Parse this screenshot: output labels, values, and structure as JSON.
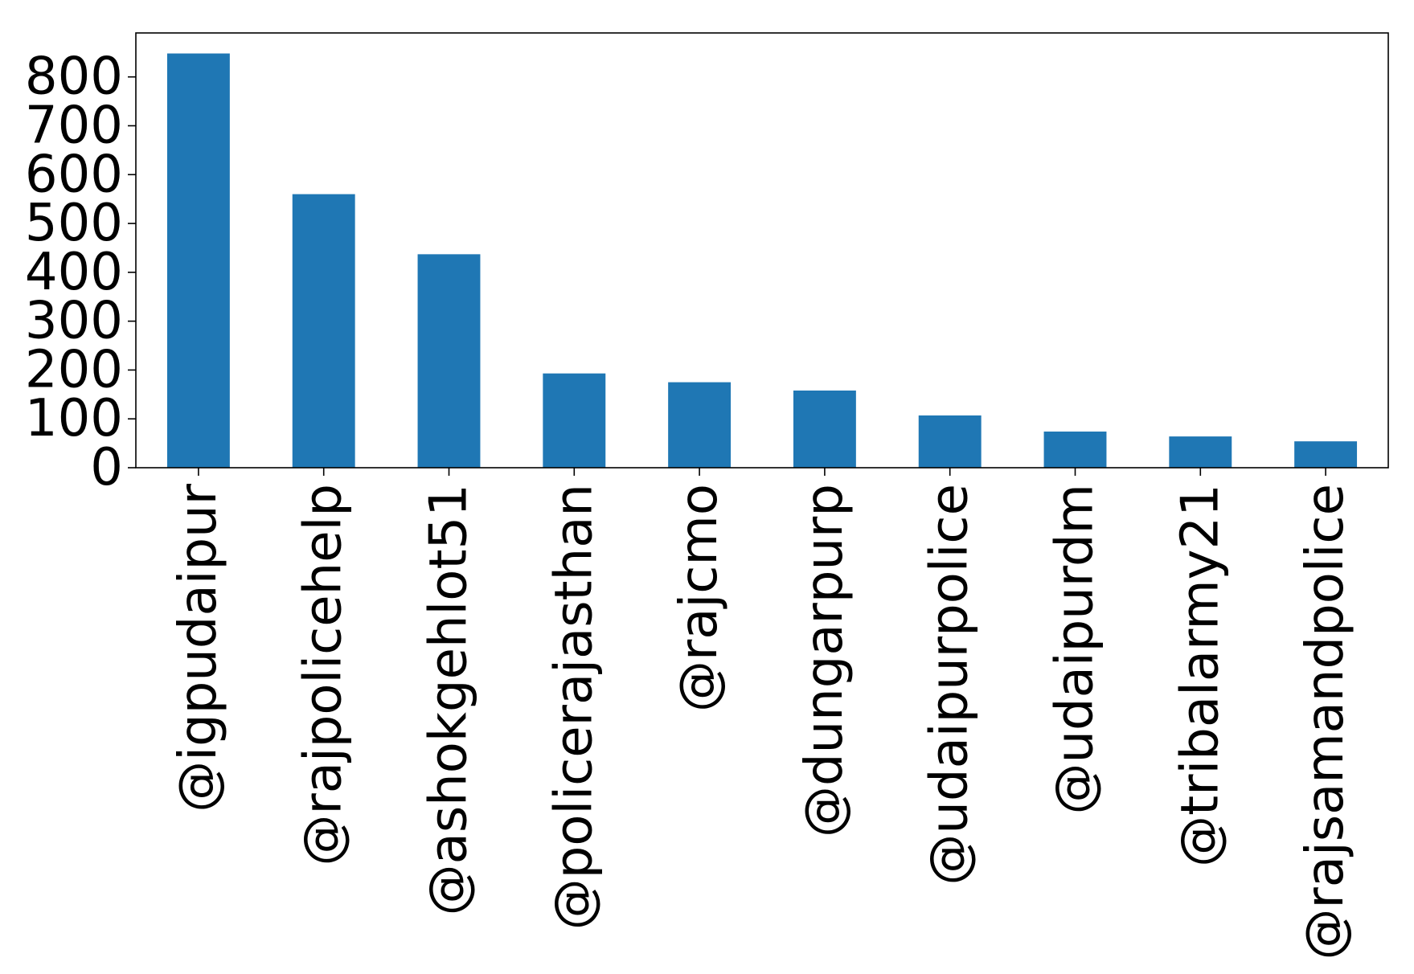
{
  "chart_data": {
    "type": "bar",
    "title": "",
    "xlabel": "",
    "ylabel": "",
    "categories": [
      "@igpudaipur",
      "@rajpolicehelp",
      "@ashokgehlot51",
      "@policerajasthan",
      "@rajcmo",
      "@dungarpurp",
      "@udaipurpolice",
      "@udaipurdm",
      "@tribalarmy21",
      "@rajsamandpolice"
    ],
    "values": [
      848,
      560,
      437,
      193,
      175,
      158,
      107,
      74,
      64,
      54
    ],
    "ylim": [
      0,
      890
    ],
    "yticks": [
      0,
      100,
      200,
      300,
      400,
      500,
      600,
      700,
      800
    ],
    "grid": false,
    "legend": "none",
    "colors": {
      "bar": "#1f77b4",
      "axes": "#000000",
      "background": "#ffffff"
    }
  }
}
